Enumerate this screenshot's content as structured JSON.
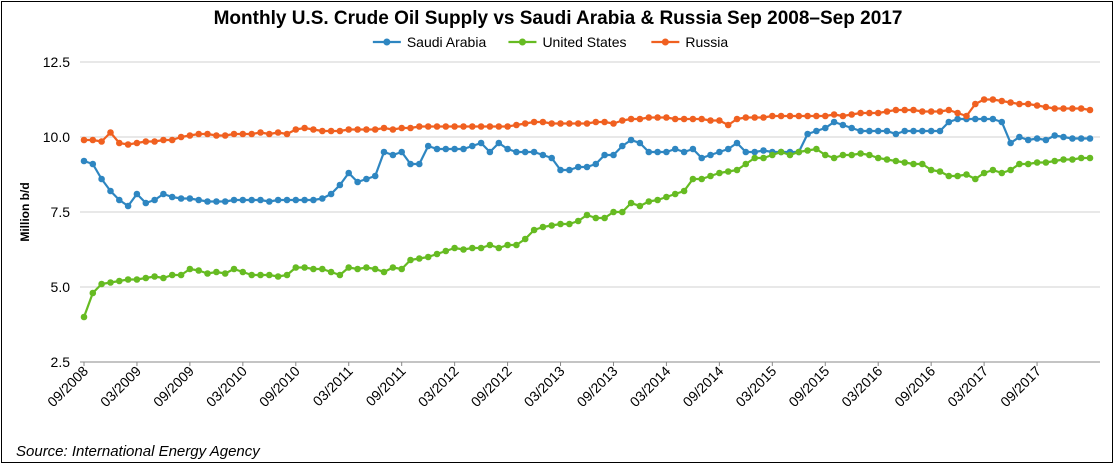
{
  "chart_data": {
    "type": "line",
    "title": "Monthly U.S. Crude Oil Supply vs Saudi Arabia & Russia Sep 2008–Sep 2017",
    "xlabel": "",
    "ylabel": "Million b/d",
    "ylim": [
      2.5,
      12.5
    ],
    "yticks": [
      "2.5",
      "5.0",
      "7.5",
      "10.0",
      "12.5"
    ],
    "grid": "horizontal",
    "legend": "top-center",
    "x_labels": [
      "09/2008",
      "03/2009",
      "09/2009",
      "03/2010",
      "09/2010",
      "03/2011",
      "09/2011",
      "03/2012",
      "09/2012",
      "03/2013",
      "09/2013",
      "03/2014",
      "09/2014",
      "03/2015",
      "09/2015",
      "03/2016",
      "09/2016",
      "03/2017",
      "09/2017"
    ],
    "series": [
      {
        "name": "Saudi Arabia",
        "color": "#2E86C1",
        "values": [
          9.2,
          9.1,
          8.6,
          8.2,
          7.9,
          7.7,
          8.1,
          7.8,
          7.9,
          8.1,
          8.0,
          7.95,
          7.95,
          7.9,
          7.85,
          7.85,
          7.85,
          7.9,
          7.9,
          7.9,
          7.9,
          7.85,
          7.9,
          7.9,
          7.9,
          7.9,
          7.9,
          7.95,
          8.1,
          8.4,
          8.8,
          8.5,
          8.6,
          8.7,
          9.5,
          9.4,
          9.5,
          9.1,
          9.1,
          9.7,
          9.6,
          9.6,
          9.6,
          9.6,
          9.7,
          9.8,
          9.5,
          9.8,
          9.6,
          9.5,
          9.5,
          9.5,
          9.4,
          9.3,
          8.9,
          8.9,
          9.0,
          9.0,
          9.1,
          9.4,
          9.4,
          9.7,
          9.9,
          9.8,
          9.5,
          9.5,
          9.5,
          9.6,
          9.5,
          9.6,
          9.3,
          9.4,
          9.5,
          9.6,
          9.8,
          9.5,
          9.5,
          9.55,
          9.5,
          9.5,
          9.5,
          9.5,
          10.1,
          10.2,
          10.3,
          10.5,
          10.4,
          10.3,
          10.2,
          10.2,
          10.2,
          10.2,
          10.1,
          10.2,
          10.2,
          10.2,
          10.2,
          10.2,
          10.5,
          10.6,
          10.6,
          10.6,
          10.6,
          10.6,
          10.5,
          9.8,
          10.0,
          9.9,
          9.95,
          9.9,
          10.05,
          10.0,
          9.95,
          9.95,
          9.95
        ]
      },
      {
        "name": "United States",
        "color": "#66BB22",
        "values": [
          4.0,
          4.8,
          5.1,
          5.15,
          5.2,
          5.25,
          5.25,
          5.3,
          5.35,
          5.3,
          5.4,
          5.4,
          5.6,
          5.55,
          5.45,
          5.5,
          5.45,
          5.6,
          5.5,
          5.4,
          5.4,
          5.4,
          5.35,
          5.4,
          5.65,
          5.65,
          5.6,
          5.6,
          5.5,
          5.4,
          5.65,
          5.6,
          5.65,
          5.6,
          5.5,
          5.65,
          5.6,
          5.9,
          5.95,
          6.0,
          6.1,
          6.2,
          6.3,
          6.25,
          6.3,
          6.3,
          6.4,
          6.3,
          6.4,
          6.4,
          6.6,
          6.9,
          7.0,
          7.05,
          7.1,
          7.1,
          7.2,
          7.4,
          7.3,
          7.3,
          7.5,
          7.5,
          7.8,
          7.7,
          7.85,
          7.9,
          8.0,
          8.1,
          8.2,
          8.6,
          8.6,
          8.7,
          8.8,
          8.85,
          8.9,
          9.1,
          9.3,
          9.3,
          9.4,
          9.5,
          9.4,
          9.5,
          9.55,
          9.6,
          9.4,
          9.3,
          9.4,
          9.4,
          9.45,
          9.4,
          9.3,
          9.25,
          9.2,
          9.15,
          9.1,
          9.1,
          8.9,
          8.85,
          8.7,
          8.7,
          8.75,
          8.6,
          8.8,
          8.9,
          8.8,
          8.9,
          9.1,
          9.1,
          9.15,
          9.15,
          9.2,
          9.25,
          9.25,
          9.3,
          9.3
        ]
      },
      {
        "name": "Russia",
        "color": "#F06020",
        "values": [
          9.9,
          9.9,
          9.85,
          10.15,
          9.8,
          9.75,
          9.8,
          9.85,
          9.85,
          9.9,
          9.9,
          10.0,
          10.05,
          10.1,
          10.1,
          10.05,
          10.05,
          10.1,
          10.1,
          10.1,
          10.15,
          10.1,
          10.15,
          10.1,
          10.25,
          10.3,
          10.25,
          10.2,
          10.2,
          10.2,
          10.25,
          10.25,
          10.25,
          10.25,
          10.3,
          10.25,
          10.3,
          10.3,
          10.35,
          10.35,
          10.35,
          10.35,
          10.35,
          10.35,
          10.35,
          10.35,
          10.35,
          10.35,
          10.35,
          10.4,
          10.45,
          10.5,
          10.5,
          10.45,
          10.45,
          10.45,
          10.45,
          10.45,
          10.5,
          10.5,
          10.45,
          10.55,
          10.6,
          10.6,
          10.65,
          10.65,
          10.65,
          10.6,
          10.6,
          10.6,
          10.6,
          10.55,
          10.55,
          10.4,
          10.6,
          10.65,
          10.65,
          10.65,
          10.7,
          10.7,
          10.7,
          10.7,
          10.7,
          10.7,
          10.7,
          10.75,
          10.7,
          10.75,
          10.8,
          10.8,
          10.8,
          10.85,
          10.9,
          10.9,
          10.9,
          10.85,
          10.85,
          10.85,
          10.9,
          10.8,
          10.7,
          11.1,
          11.25,
          11.25,
          11.2,
          11.15,
          11.1,
          11.1,
          11.05,
          11.0,
          10.95,
          10.95,
          10.95,
          10.95,
          10.9
        ]
      }
    ]
  },
  "source": "Source: International Energy Agency"
}
